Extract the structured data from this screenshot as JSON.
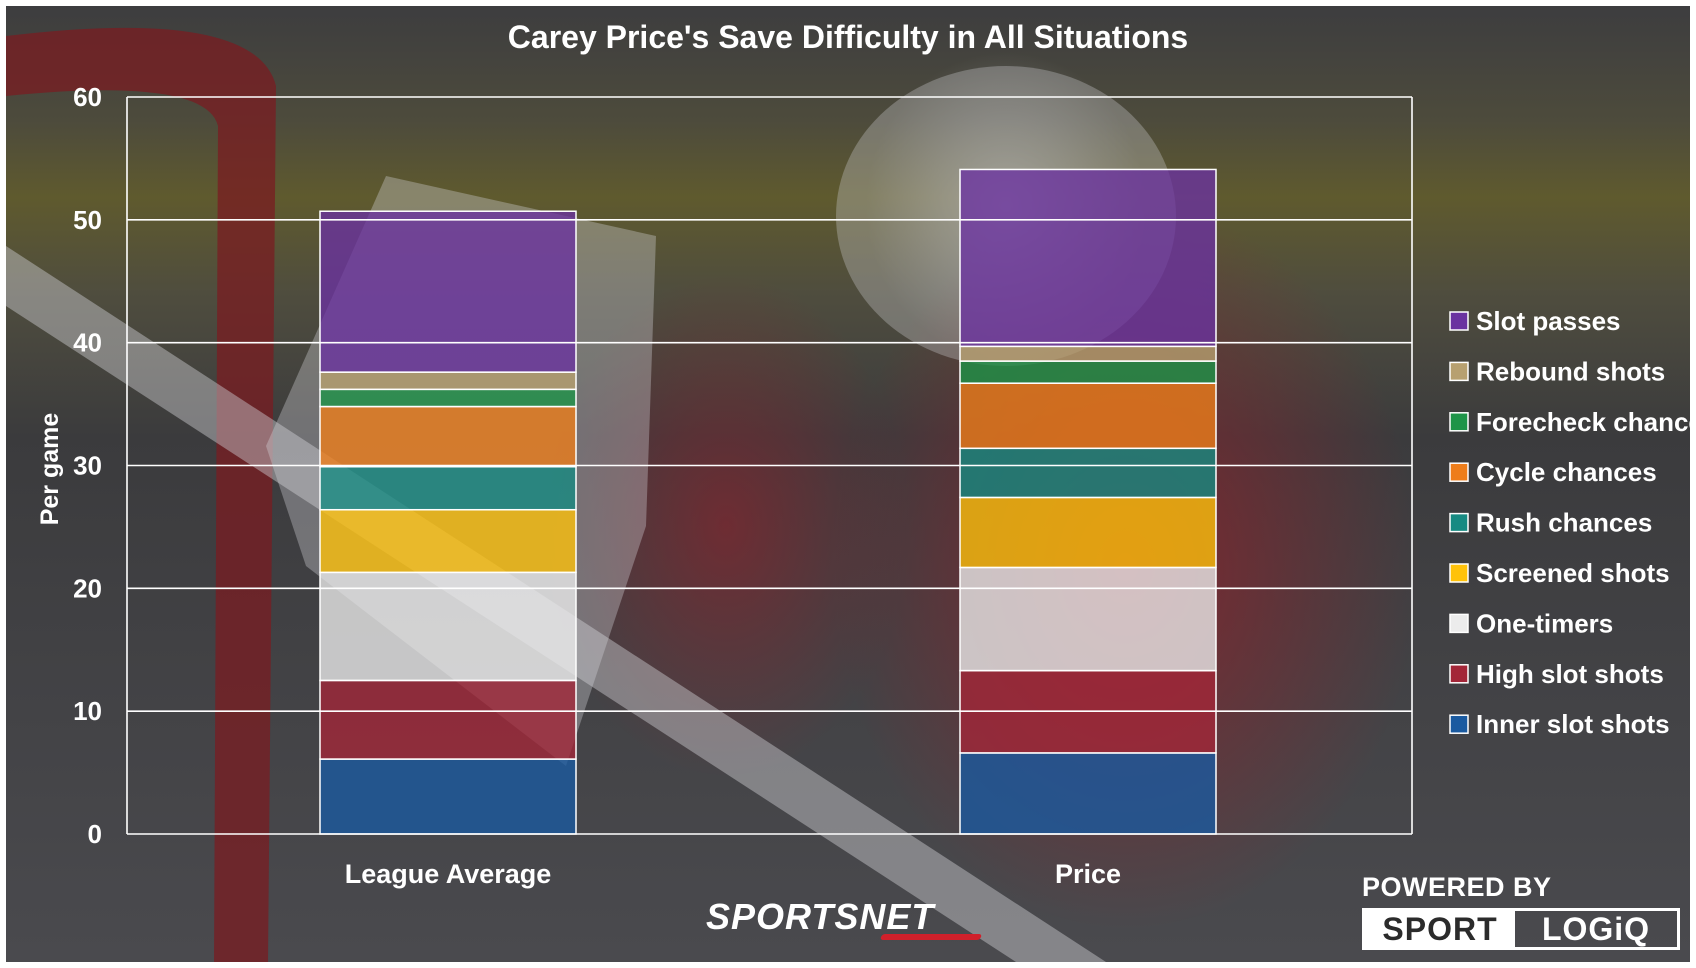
{
  "chart_data": {
    "type": "bar",
    "stacked": true,
    "title": "Carey Price's Save Difficulty in All Situations",
    "ylabel": "Per game",
    "xlabel": "",
    "ylim": [
      0,
      60
    ],
    "yticks": [
      0,
      10,
      20,
      30,
      40,
      50,
      60
    ],
    "grid": true,
    "legend_position": "right",
    "categories": [
      "League Average",
      "Price"
    ],
    "series": [
      {
        "name": "Inner slot shots",
        "color": "#1a5aa0",
        "values": [
          6.1,
          6.6
        ]
      },
      {
        "name": "High slot shots",
        "color": "#a32638",
        "values": [
          6.4,
          6.7
        ]
      },
      {
        "name": "One-timers",
        "color": "#ececec",
        "values": [
          8.8,
          8.4
        ]
      },
      {
        "name": "Screened shots",
        "color": "#ffc20a",
        "values": [
          5.1,
          5.7
        ]
      },
      {
        "name": "Rush chances",
        "color": "#168a82",
        "values": [
          3.5,
          4.0
        ]
      },
      {
        "name": "Cycle chances",
        "color": "#ee7d1a",
        "values": [
          4.9,
          5.3
        ]
      },
      {
        "name": "Forecheck chances",
        "color": "#1e9448",
        "values": [
          1.4,
          1.8
        ]
      },
      {
        "name": "Rebound shots",
        "color": "#b7a070",
        "values": [
          1.4,
          1.2
        ]
      },
      {
        "name": "Slot passes",
        "color": "#6a32a0",
        "values": [
          13.1,
          14.4
        ]
      }
    ]
  },
  "branding": {
    "network": "SPORTSNET",
    "powered_by": "POWERED BY",
    "partner_left": "SPORT",
    "partner_right": "LOGiQ"
  }
}
